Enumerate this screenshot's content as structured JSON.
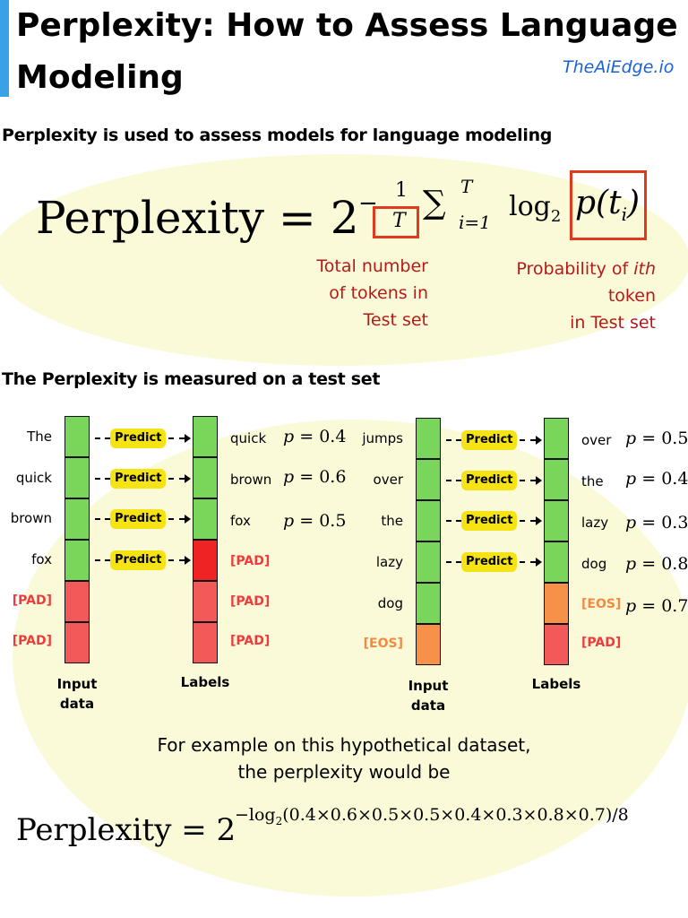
{
  "header": {
    "title_line1": "Perplexity: How to Assess Language",
    "title_line2": "Modeling",
    "brand": "TheAiEdge.io"
  },
  "section1": {
    "heading": "Perplexity is used to assess models for language modeling",
    "formula": {
      "lhs": "Perplexity",
      "eq": "=",
      "base": "2",
      "neg": "−",
      "num": "1",
      "den": "T",
      "sum": "∑",
      "sum_top": "T",
      "sum_bottom": "i=1",
      "log": "log",
      "log_base": "2",
      "prob": "p(t",
      "prob_sub": "i",
      "prob_close": ")"
    },
    "note_left": [
      "Total number",
      "of tokens in",
      "Test set"
    ],
    "note_right_pre": "Probability of ",
    "note_right_em": "ith",
    "note_right_lines": [
      "token",
      "in Test set"
    ]
  },
  "section2": {
    "heading": "The Perplexity is measured on a test set",
    "predict_label": "Predict",
    "input_caption": [
      "Input",
      "data"
    ],
    "labels_caption": "Labels",
    "left": {
      "inputs": [
        "The",
        "quick",
        "brown",
        "fox",
        "[PAD]",
        "[PAD]"
      ],
      "labels": [
        "quick",
        "brown",
        "fox",
        "[PAD]",
        "[PAD]",
        "[PAD]"
      ],
      "probs": [
        "0.4",
        "0.6",
        "0.5"
      ]
    },
    "right": {
      "inputs": [
        "jumps",
        "over",
        "the",
        "lazy",
        "dog",
        "[EOS]"
      ],
      "labels": [
        "over",
        "the",
        "lazy",
        "dog",
        "[EOS]",
        "[PAD]"
      ],
      "probs": [
        "0.5",
        "0.4",
        "0.3",
        "0.8",
        "0.7"
      ]
    },
    "p_symbol": "p",
    "p_eq": "="
  },
  "example": {
    "line1": "For example on this hypothetical dataset,",
    "line2": "the perplexity would be",
    "lhs": "Perplexity",
    "eq": "=",
    "base": "2",
    "exponent": "−log",
    "exp_sub": "2",
    "exp_rest": "(0.4×0.6×0.5×0.5×0.4×0.3×0.8×0.7)/8"
  },
  "colors": {
    "accent_bar": "#3aa0e8",
    "brand": "#1a62d6",
    "highlight_box": "#e03a1e",
    "note_text": "#b31b1b",
    "green_cell": "#79d65a",
    "red_cell": "#f25a5a",
    "orange_cell": "#f7914a",
    "predict_pill": "#f6e313",
    "background_blob": "#fbfad8"
  }
}
